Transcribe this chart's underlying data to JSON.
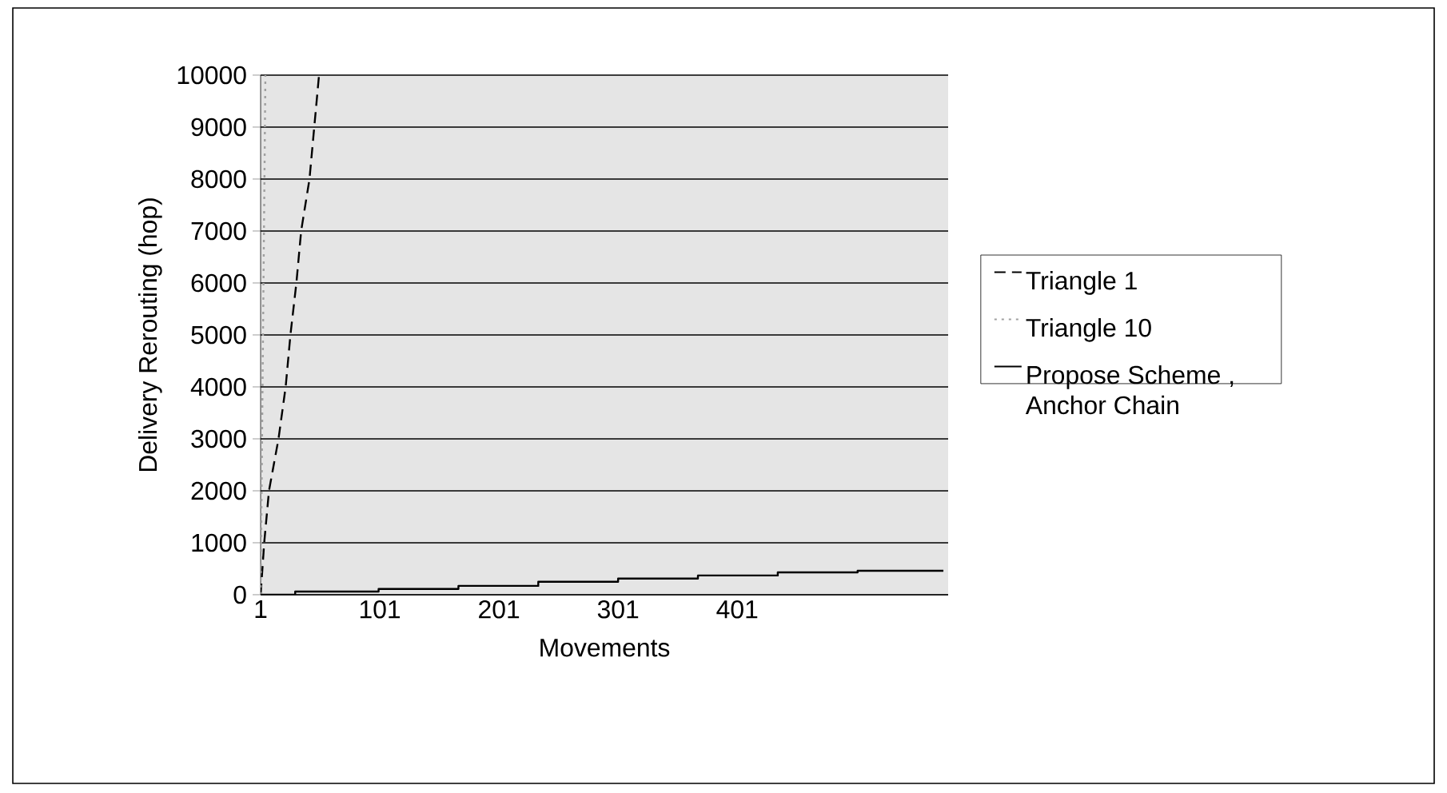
{
  "chart_data": {
    "type": "line",
    "xlabel": "Movements",
    "ylabel": "Delivery Rerouting (hop)",
    "xlim": [
      1,
      578
    ],
    "xticks": [
      1,
      101,
      201,
      301,
      401
    ],
    "ylim": [
      0,
      10000
    ],
    "yticks": [
      0,
      1000,
      2000,
      3000,
      4000,
      5000,
      6000,
      7000,
      8000,
      9000,
      10000
    ],
    "grid": "y",
    "legend": "right",
    "series": [
      {
        "name": "Triangle 1",
        "color": "#000000",
        "line_style": "dashed",
        "x": [
          1,
          4,
          8,
          16,
          22,
          26,
          31,
          35,
          42,
          46,
          50
        ],
        "values": [
          0,
          1000,
          2000,
          3000,
          4000,
          5000,
          6000,
          7000,
          8000,
          9000,
          10000
        ]
      },
      {
        "name": "Triangle 10",
        "color": "#a0a0a0",
        "line_style": "dotted",
        "x": [
          1,
          2,
          3,
          4,
          5
        ],
        "values": [
          0,
          2500,
          5000,
          7500,
          10000
        ]
      },
      {
        "name": "Propose Scheme , Anchor Chain",
        "type": "step",
        "color": "#000000",
        "line_style": "solid",
        "x": [
          1,
          30,
          100,
          167,
          234,
          301,
          368,
          435,
          502,
          574
        ],
        "values": [
          0,
          60,
          110,
          170,
          250,
          310,
          370,
          430,
          460,
          460
        ]
      }
    ]
  }
}
